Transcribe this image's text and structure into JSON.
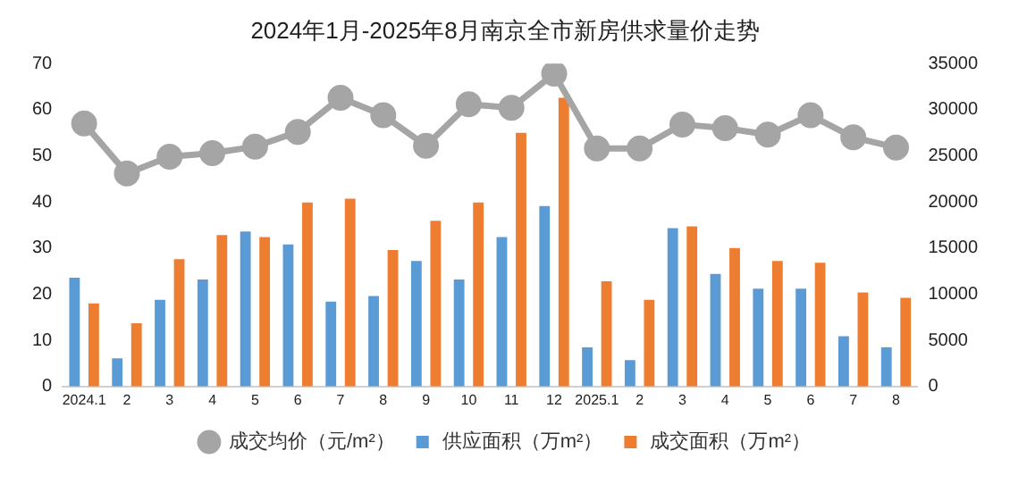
{
  "chart_data": {
    "type": "bar",
    "title": "2024年1月-2025年8月南京全市新房供求量价走势",
    "categories": [
      "2024.1",
      "2",
      "3",
      "4",
      "5",
      "6",
      "7",
      "8",
      "9",
      "10",
      "11",
      "12",
      "2025.1",
      "2",
      "3",
      "4",
      "5",
      "6",
      "7",
      "8"
    ],
    "series": [
      {
        "name": "供应面积（万m²）",
        "color": "#5b9bd5",
        "values": [
          23.6,
          6.1,
          18.8,
          23.2,
          33.6,
          30.8,
          18.4,
          19.6,
          27.2,
          23.2,
          32.4,
          39.1,
          8.5,
          5.7,
          34.3,
          24.4,
          21.2,
          21.2,
          10.9,
          8.5
        ]
      },
      {
        "name": "成交面积（万m²）",
        "color": "#ed7d31",
        "values": [
          18.0,
          13.7,
          27.6,
          32.8,
          32.4,
          39.9,
          40.7,
          29.6,
          35.9,
          39.9,
          55.0,
          62.6,
          22.8,
          18.8,
          34.7,
          30.0,
          27.2,
          26.8,
          20.4,
          19.2
        ]
      },
      {
        "name": "成交均价（元/m²）",
        "type": "line",
        "axis": "y2",
        "color": "#a5a5a5",
        "marker": "circle",
        "values": [
          28500,
          23100,
          24900,
          25300,
          26000,
          27600,
          31300,
          29400,
          26100,
          30600,
          30200,
          33900,
          25800,
          25800,
          28400,
          28000,
          27300,
          29400,
          27000,
          25900
        ]
      }
    ],
    "ylim": [
      0,
      70
    ],
    "yticks": [
      0,
      10,
      20,
      30,
      40,
      50,
      60,
      70
    ],
    "y2lim": [
      0,
      35000
    ],
    "y2ticks": [
      0,
      5000,
      10000,
      15000,
      20000,
      25000,
      30000,
      35000
    ],
    "grid": false,
    "legend": "bottom"
  }
}
